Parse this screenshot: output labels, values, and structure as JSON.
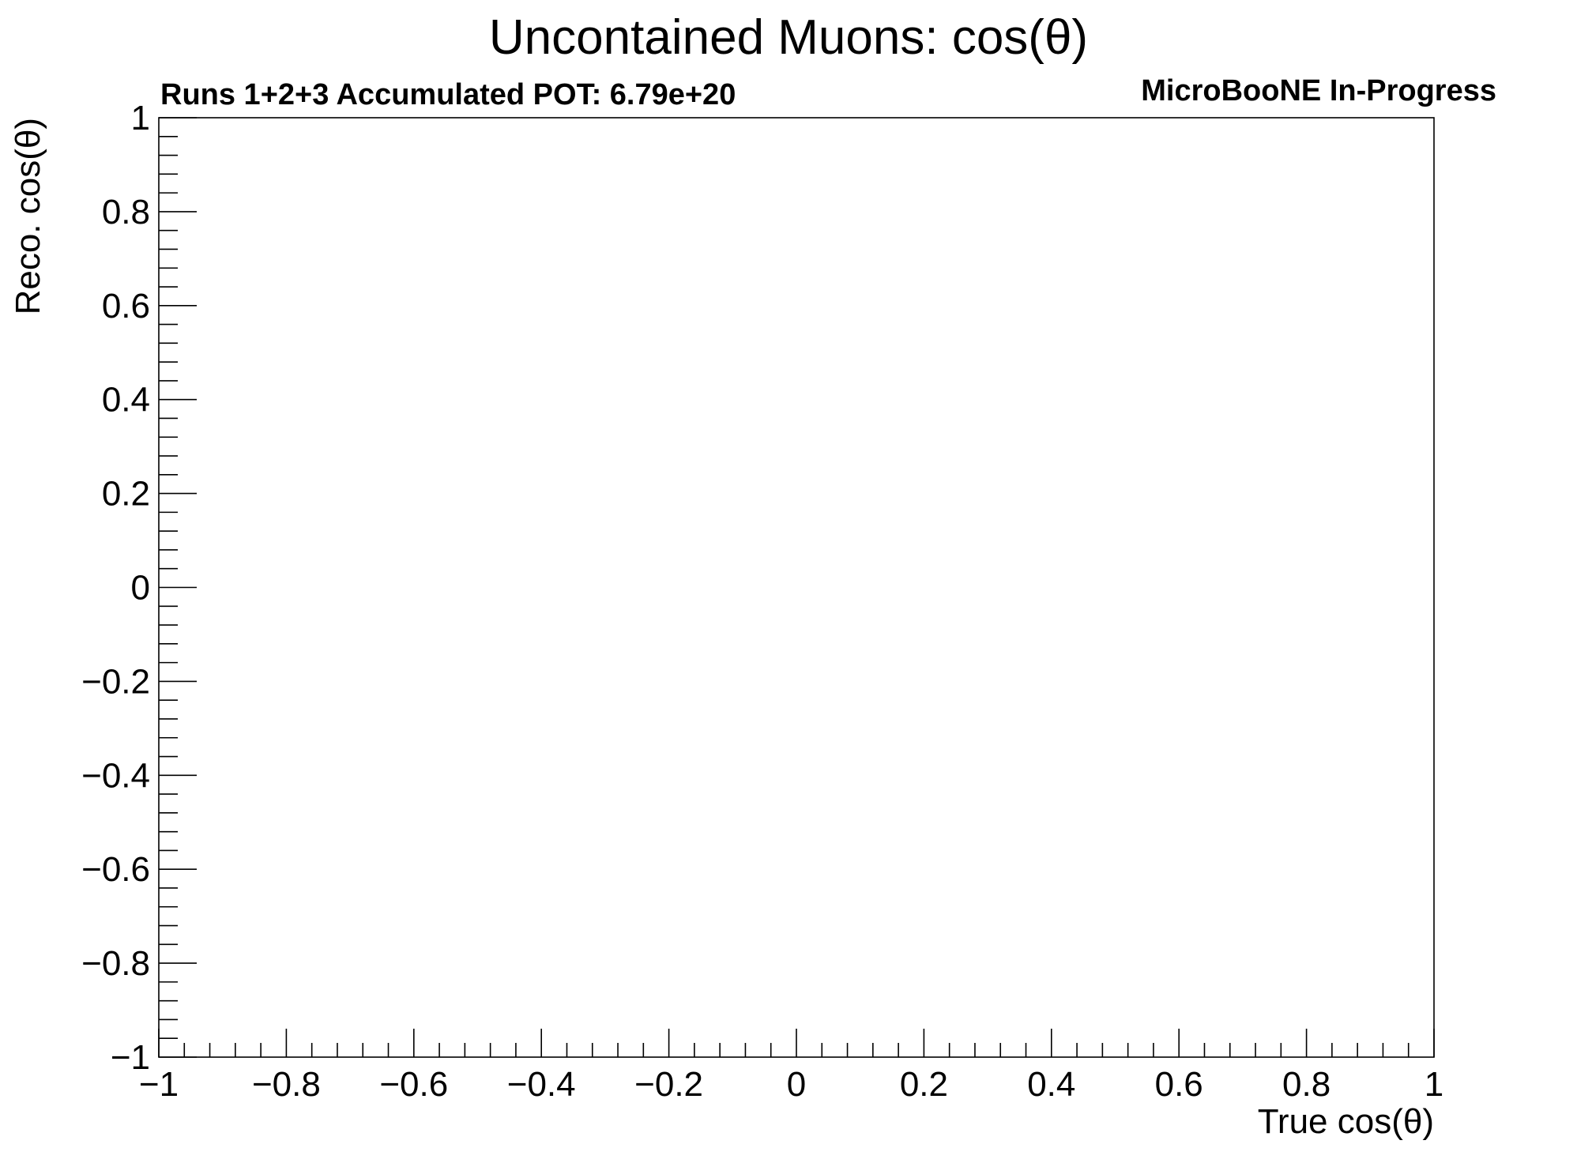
{
  "chart_data": {
    "type": "heatmap",
    "title": "Uncontained Muons: cos(θ)",
    "subtitle_left": "Runs 1+2+3 Accumulated POT: 6.79e+20",
    "subtitle_right": "MicroBooNE In-Progress",
    "xlabel": "True cos(θ)",
    "ylabel": "Reco. cos(θ)",
    "xlim": [
      -1,
      1
    ],
    "ylim": [
      -1,
      1
    ],
    "x_ticks": [
      "−1",
      "−0.8",
      "−0.6",
      "−0.4",
      "−0.2",
      "0",
      "0.2",
      "0.4",
      "0.6",
      "0.8",
      "1"
    ],
    "y_ticks": [
      "−1",
      "−0.8",
      "−0.6",
      "−0.4",
      "−0.2",
      "0",
      "0.2",
      "0.4",
      "0.6",
      "0.8",
      "1"
    ],
    "grid": false,
    "values": []
  }
}
